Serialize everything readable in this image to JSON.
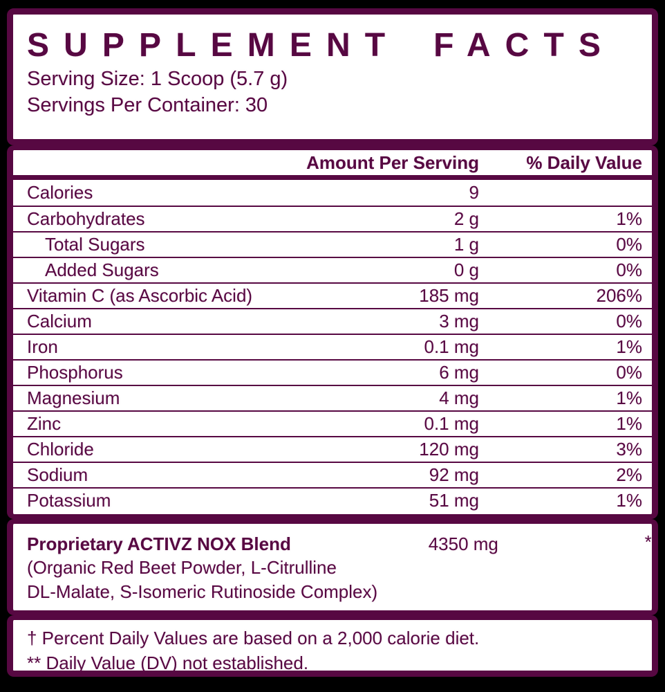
{
  "colors": {
    "accent_maroon": "#570842",
    "label_background": "#ffffff",
    "page_background": "#000000"
  },
  "header": {
    "title": "SUPPLEMENT FACTS",
    "serving_size": "Serving Size: 1 Scoop (5.7 g)",
    "servings_per_container": "Servings Per Container: 30"
  },
  "table": {
    "columns": {
      "amount": "Amount Per Serving",
      "dv": "% Daily Value"
    },
    "rows": [
      {
        "name": "Calories",
        "amount": "9",
        "dv": ""
      },
      {
        "name": "Carbohydrates",
        "amount": "2 g",
        "dv": "1%"
      },
      {
        "name": "Total Sugars",
        "amount": "1 g",
        "dv": "0%"
      },
      {
        "name": "Added Sugars",
        "amount": "0 g",
        "dv": "0%"
      },
      {
        "name": "Vitamin C (as Ascorbic Acid)",
        "amount": "185 mg",
        "dv": "206%"
      },
      {
        "name": "Calcium",
        "amount": "3 mg",
        "dv": "0%"
      },
      {
        "name": "Iron",
        "amount": "0.1 mg",
        "dv": "1%"
      },
      {
        "name": "Phosphorus",
        "amount": "6 mg",
        "dv": "0%"
      },
      {
        "name": "Magnesium",
        "amount": "4 mg",
        "dv": "1%"
      },
      {
        "name": "Zinc",
        "amount": "0.1 mg",
        "dv": "1%"
      },
      {
        "name": "Chloride",
        "amount": "120 mg",
        "dv": "3%"
      },
      {
        "name": "Sodium",
        "amount": "92 mg",
        "dv": "2%"
      },
      {
        "name": "Potassium",
        "amount": "51 mg",
        "dv": "1%"
      }
    ]
  },
  "blend": {
    "name": "Proprietary ACTIVZ NOX Blend",
    "amount": "4350 mg",
    "dv": "**",
    "description_lines": [
      "(Organic Red Beet Powder, L-Citrulline",
      "DL-Malate, S-Isomeric Rutinoside Complex)"
    ]
  },
  "footnotes": {
    "line1": "† Percent Daily Values are based on a 2,000 calorie diet.",
    "line2": "** Daily Value (DV) not established."
  }
}
